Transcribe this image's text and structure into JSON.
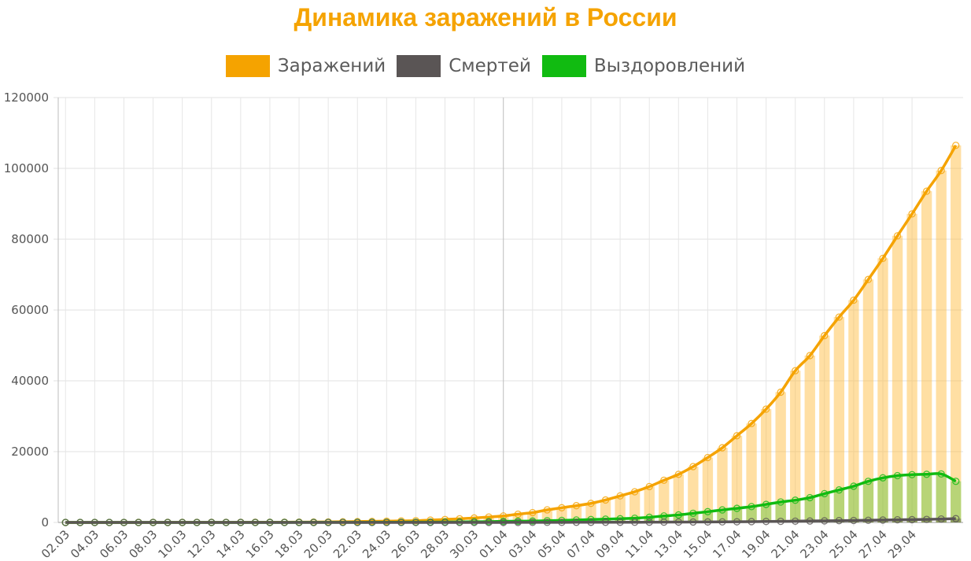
{
  "chart_data": {
    "type": "bar+line",
    "title": "Динамика заражений в России",
    "ylim": [
      0,
      120000
    ],
    "y_ticks": [
      "0",
      "20000",
      "40000",
      "60000",
      "80000",
      "100000",
      "120000"
    ],
    "x_ticks": [
      "02.03",
      "04.03",
      "06.03",
      "08.03",
      "10.03",
      "12.03",
      "14.03",
      "16.03",
      "18.03",
      "20.03",
      "22.03",
      "24.03",
      "26.03",
      "28.03",
      "30.03",
      "01.04",
      "03.04",
      "05.04",
      "07.04",
      "09.04",
      "11.04",
      "13.04",
      "15.04",
      "17.04",
      "19.04",
      "21.04",
      "23.04",
      "25.04",
      "27.04",
      "29.04"
    ],
    "grid": true,
    "legend_position": "top",
    "series": [
      {
        "name": "Заражений",
        "color": "#f5a300",
        "values": [
          3,
          3,
          3,
          4,
          6,
          10,
          13,
          17,
          17,
          20,
          20,
          28,
          34,
          45,
          59,
          63,
          90,
          114,
          147,
          199,
          253,
          306,
          367,
          438,
          495,
          658,
          840,
          1036,
          1264,
          1534,
          1836,
          2337,
          2777,
          3548,
          4149,
          4731,
          5389,
          6343,
          7497,
          8672,
          10131,
          11917,
          13584,
          15770,
          18328,
          21102,
          24490,
          27938,
          32008,
          36793,
          42853,
          47121,
          52763,
          57999,
          62773,
          68622,
          74588,
          80949,
          87147,
          93558,
          99399,
          106498
        ]
      },
      {
        "name": "Смертей",
        "color": "#5a5555",
        "values": [
          0,
          0,
          0,
          0,
          0,
          0,
          0,
          0,
          0,
          0,
          0,
          0,
          0,
          0,
          0,
          0,
          0,
          0,
          1,
          1,
          1,
          2,
          3,
          3,
          4,
          4,
          4,
          5,
          8,
          9,
          13,
          17,
          24,
          30,
          34,
          43,
          45,
          47,
          58,
          63,
          76,
          94,
          106,
          130,
          148,
          170,
          198,
          232,
          273,
          313,
          361,
          405,
          456,
          513,
          555,
          615,
          681,
          747,
          794,
          867,
          972,
          1073
        ]
      },
      {
        "name": "Выздоровлений",
        "color": "#11bb11",
        "values": [
          0,
          0,
          0,
          0,
          0,
          0,
          0,
          0,
          0,
          0,
          0,
          3,
          5,
          8,
          9,
          12,
          14,
          16,
          22,
          29,
          38,
          43,
          49,
          64,
          85,
          97,
          121,
          150,
          190,
          235,
          299,
          355,
          398,
          494,
          580,
          692,
          828,
          931,
          1045,
          1193,
          1459,
          1829,
          2125,
          2590,
          3044,
          3540,
          3983,
          4473,
          5102,
          5784,
          6289,
          7001,
          8133,
          9186,
          10237,
          11619,
          12600,
          13220,
          13500,
          13600,
          13700,
          11619
        ]
      }
    ]
  },
  "legend_entries": [
    {
      "label": "Заражений",
      "color": "#f5a300"
    },
    {
      "label": "Смертей",
      "color": "#5a5555"
    },
    {
      "label": "Выздоровлений",
      "color": "#11bb11"
    }
  ]
}
